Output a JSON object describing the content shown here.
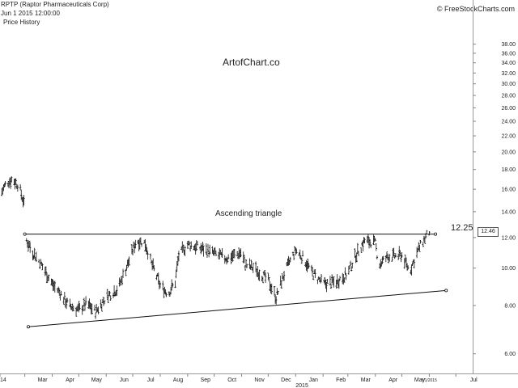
{
  "header": {
    "title": "RPTP (Raptor Pharmaceuticals Corp)",
    "datetime": "Jun 1 2015 12:00:00",
    "subtitle": "Price History",
    "copyright": "© FreeStockCharts.com"
  },
  "annotations": {
    "watermark": "ArtofChart.co",
    "pattern": "Ascending triangle",
    "target": "12.25",
    "last_price": "12.46",
    "last_date": "6/1/2015"
  },
  "chart_data": {
    "type": "ohlc",
    "title": "RPTP (Raptor Pharmaceuticals Corp)",
    "subtitle": "Price History",
    "y_scale": "log",
    "ylim": [
      5.6,
      40
    ],
    "y_ticks": [
      6,
      8,
      10,
      12,
      14,
      16,
      18,
      20,
      22,
      24,
      26,
      28,
      30,
      32,
      34,
      36,
      38
    ],
    "y_tick_labels": [
      "6.00",
      "8.00",
      "10.00",
      "12.00",
      "14.00",
      "16.00",
      "18.00",
      "20.00",
      "22.00",
      "24.00",
      "26.00",
      "28.00",
      "30.00",
      "32.00",
      "34.00",
      "36.00",
      "38.00"
    ],
    "xlim": [
      "2014-02-01",
      "2015-07-20"
    ],
    "x_ticks": [
      "2014-02-01",
      "2014-03-01",
      "2014-04-01",
      "2014-05-01",
      "2014-06-01",
      "2014-07-01",
      "2014-08-01",
      "2014-09-01",
      "2014-10-01",
      "2014-11-01",
      "2014-12-01",
      "2015-01-01",
      "2015-02-01",
      "2015-03-01",
      "2015-04-01",
      "2015-05-01",
      "2015-06-01",
      "2015-07-01"
    ],
    "x_tick_labels": [
      "14",
      "Mar",
      "Apr",
      "May",
      "Jun",
      "Jul",
      "Aug",
      "Sep",
      "Oct",
      "Nov",
      "Dec",
      "Jan",
      "Feb",
      "Mar",
      "Apr",
      "May",
      "",
      "Jul"
    ],
    "x_year_label": "2015",
    "grid": false,
    "price_path": [
      [
        "2014-02-01",
        15.4
      ],
      [
        "2014-02-08",
        16.6
      ],
      [
        "2014-02-15",
        17.0
      ],
      [
        "2014-02-22",
        16.4
      ],
      [
        "2014-03-01",
        14.4
      ],
      [
        "2014-03-03",
        11.8
      ],
      [
        "2014-03-10",
        11.0
      ],
      [
        "2014-03-20",
        10.2
      ],
      [
        "2014-04-01",
        9.1
      ],
      [
        "2014-04-10",
        8.6
      ],
      [
        "2014-04-20",
        8.0
      ],
      [
        "2014-05-01",
        7.8
      ],
      [
        "2014-05-10",
        8.1
      ],
      [
        "2014-05-20",
        7.7
      ],
      [
        "2014-06-01",
        8.4
      ],
      [
        "2014-06-15",
        8.9
      ],
      [
        "2014-06-28",
        10.6
      ],
      [
        "2014-07-05",
        11.8
      ],
      [
        "2014-07-15",
        11.6
      ],
      [
        "2014-07-22",
        10.3
      ],
      [
        "2014-08-01",
        9.0
      ],
      [
        "2014-08-10",
        8.6
      ],
      [
        "2014-08-18",
        9.2
      ],
      [
        "2014-08-22",
        10.8
      ],
      [
        "2014-09-01",
        11.5
      ],
      [
        "2014-09-15",
        11.3
      ],
      [
        "2014-10-01",
        10.9
      ],
      [
        "2014-10-15",
        10.6
      ],
      [
        "2014-11-01",
        11.0
      ],
      [
        "2014-11-05",
        10.2
      ],
      [
        "2014-11-15",
        10.0
      ],
      [
        "2014-12-01",
        9.3
      ],
      [
        "2014-12-10",
        8.4
      ],
      [
        "2014-12-20",
        9.8
      ],
      [
        "2015-01-01",
        11.1
      ],
      [
        "2015-01-10",
        10.6
      ],
      [
        "2015-01-20",
        9.7
      ],
      [
        "2015-02-01",
        9.1
      ],
      [
        "2015-02-15",
        9.2
      ],
      [
        "2015-03-01",
        9.7
      ],
      [
        "2015-03-10",
        10.8
      ],
      [
        "2015-03-20",
        11.8
      ],
      [
        "2015-04-01",
        11.6
      ],
      [
        "2015-04-05",
        10.2
      ],
      [
        "2015-04-15",
        10.7
      ],
      [
        "2015-05-01",
        10.8
      ],
      [
        "2015-05-10",
        9.8
      ],
      [
        "2015-05-20",
        11.2
      ],
      [
        "2015-06-01",
        12.46
      ]
    ],
    "trendlines": [
      {
        "name": "resistance",
        "from": [
          "2014-03-01",
          12.25
        ],
        "to": [
          "2015-06-08",
          12.25
        ]
      },
      {
        "name": "support",
        "from": [
          "2014-03-05",
          7.05
        ],
        "to": [
          "2015-06-20",
          8.75
        ]
      }
    ]
  }
}
